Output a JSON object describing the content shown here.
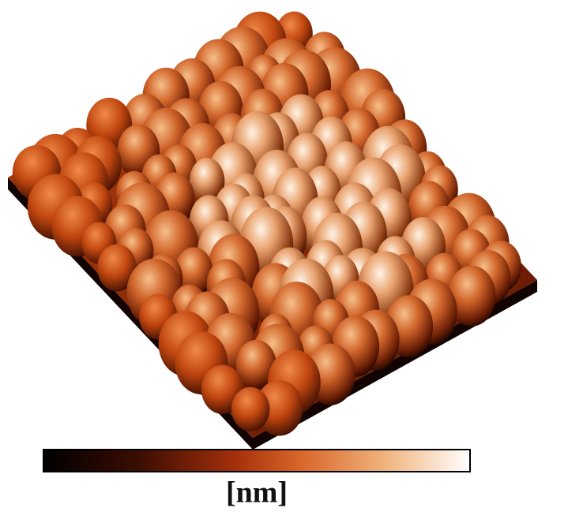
{
  "colorbar_label": "[nm]"
}
